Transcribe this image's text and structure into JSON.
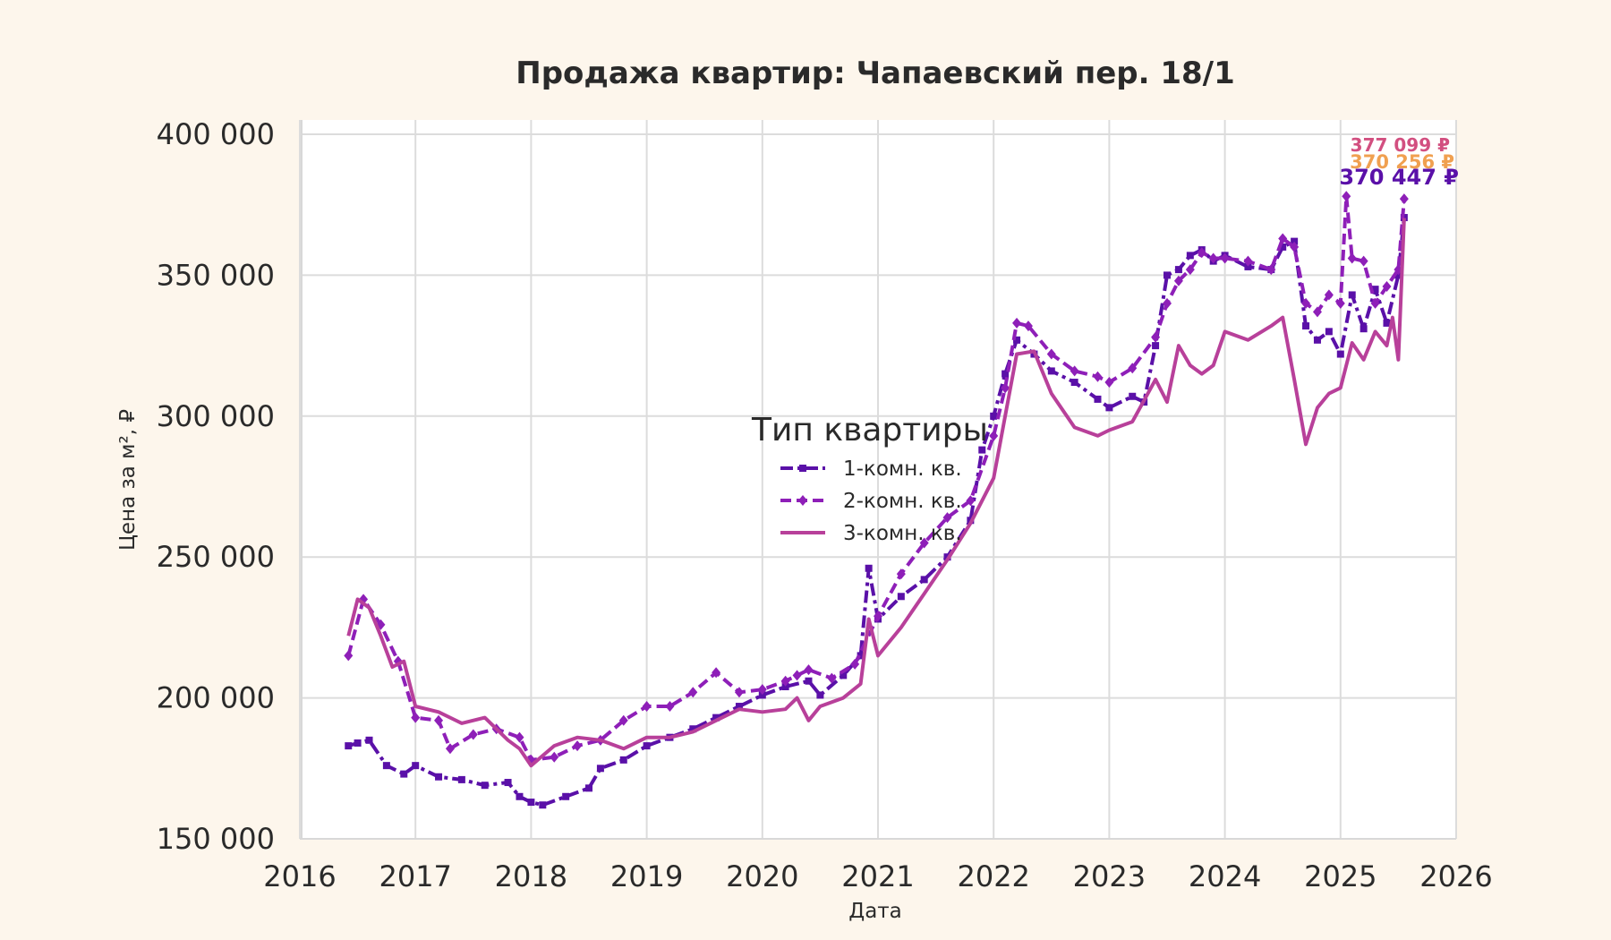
{
  "chart_data": {
    "type": "line",
    "title": "Продажа квартир: Чапаевский пер. 18/1",
    "xlabel": "Дата",
    "ylabel": "Цена за м², ₽",
    "xlim": [
      2016,
      2026
    ],
    "ylim": [
      150000,
      400000
    ],
    "x_ticks": [
      "2016",
      "2017",
      "2018",
      "2019",
      "2020",
      "2021",
      "2022",
      "2023",
      "2024",
      "2025",
      "2026"
    ],
    "y_ticks": [
      "150 000",
      "200 000",
      "250 000",
      "300 000",
      "350 000",
      "400 000"
    ],
    "grid": true,
    "legend": {
      "title": "Тип квартиры",
      "placement": "center"
    },
    "series": [
      {
        "name": "1-комн. кв.",
        "color": "#5a10a8",
        "style": "dashdot",
        "marker": "square",
        "x": [
          2016.42,
          2016.5,
          2016.6,
          2016.75,
          2016.9,
          2017.0,
          2017.2,
          2017.4,
          2017.6,
          2017.8,
          2017.9,
          2018.0,
          2018.1,
          2018.3,
          2018.5,
          2018.6,
          2018.8,
          2019.0,
          2019.2,
          2019.4,
          2019.6,
          2019.8,
          2020.0,
          2020.2,
          2020.4,
          2020.5,
          2020.7,
          2020.85,
          2020.92,
          2021.0,
          2021.2,
          2021.4,
          2021.6,
          2021.8,
          2021.9,
          2022.0,
          2022.1,
          2022.2,
          2022.35,
          2022.5,
          2022.7,
          2022.9,
          2023.0,
          2023.2,
          2023.3,
          2023.4,
          2023.5,
          2023.6,
          2023.7,
          2023.8,
          2023.9,
          2024.0,
          2024.2,
          2024.4,
          2024.5,
          2024.6,
          2024.7,
          2024.8,
          2024.9,
          2025.0,
          2025.1,
          2025.2,
          2025.3,
          2025.4,
          2025.5,
          2025.55
        ],
        "y": [
          183000,
          184000,
          185000,
          176000,
          173000,
          176000,
          172000,
          171000,
          169000,
          170000,
          165000,
          163000,
          162000,
          165000,
          168000,
          175000,
          178000,
          183000,
          186000,
          189000,
          193000,
          197000,
          201000,
          204000,
          206000,
          201000,
          208000,
          215000,
          246000,
          228000,
          236000,
          242000,
          250000,
          263000,
          288000,
          300000,
          315000,
          327000,
          322000,
          316000,
          312000,
          306000,
          303000,
          307000,
          305000,
          325000,
          350000,
          352000,
          357000,
          359000,
          355000,
          357000,
          353000,
          352000,
          360000,
          362000,
          332000,
          327000,
          330000,
          322000,
          343000,
          331000,
          345000,
          333000,
          350000,
          370447
        ]
      },
      {
        "name": "2-комн. кв.",
        "color": "#8e1fb8",
        "style": "dashed",
        "marker": "diamond",
        "x": [
          2016.42,
          2016.55,
          2016.7,
          2016.85,
          2017.0,
          2017.2,
          2017.3,
          2017.5,
          2017.7,
          2017.9,
          2018.0,
          2018.2,
          2018.4,
          2018.6,
          2018.8,
          2019.0,
          2019.2,
          2019.4,
          2019.6,
          2019.8,
          2020.0,
          2020.2,
          2020.3,
          2020.4,
          2020.6,
          2020.8,
          2021.0,
          2021.2,
          2021.4,
          2021.6,
          2021.8,
          2022.0,
          2022.1,
          2022.2,
          2022.3,
          2022.5,
          2022.7,
          2022.9,
          2023.0,
          2023.2,
          2023.4,
          2023.5,
          2023.6,
          2023.7,
          2023.8,
          2023.9,
          2024.0,
          2024.2,
          2024.4,
          2024.5,
          2024.6,
          2024.7,
          2024.8,
          2024.9,
          2025.0,
          2025.05,
          2025.1,
          2025.2,
          2025.3,
          2025.4,
          2025.5,
          2025.55
        ],
        "y": [
          215000,
          235000,
          226000,
          213000,
          193000,
          192000,
          182000,
          187000,
          189000,
          186000,
          178000,
          179000,
          183000,
          185000,
          192000,
          197000,
          197000,
          202000,
          209000,
          202000,
          203000,
          206000,
          208000,
          210000,
          207000,
          212000,
          229000,
          244000,
          255000,
          264000,
          270000,
          293000,
          310000,
          333000,
          332000,
          322000,
          316000,
          314000,
          312000,
          317000,
          328000,
          340000,
          348000,
          352000,
          358000,
          356000,
          356000,
          355000,
          352000,
          363000,
          360000,
          340000,
          337000,
          343000,
          340000,
          378000,
          356000,
          355000,
          340000,
          346000,
          352000,
          377099
        ]
      },
      {
        "name": "3-комн. кв.",
        "color": "#b8409a",
        "style": "solid",
        "marker": "none",
        "x": [
          2016.42,
          2016.5,
          2016.6,
          2016.7,
          2016.8,
          2016.9,
          2017.0,
          2017.2,
          2017.4,
          2017.6,
          2017.8,
          2017.9,
          2018.0,
          2018.2,
          2018.4,
          2018.6,
          2018.8,
          2019.0,
          2019.2,
          2019.4,
          2019.6,
          2019.8,
          2020.0,
          2020.2,
          2020.3,
          2020.4,
          2020.5,
          2020.7,
          2020.85,
          2020.92,
          2021.0,
          2021.2,
          2021.4,
          2021.6,
          2021.8,
          2022.0,
          2022.1,
          2022.2,
          2022.35,
          2022.5,
          2022.7,
          2022.9,
          2023.0,
          2023.2,
          2023.4,
          2023.5,
          2023.6,
          2023.7,
          2023.8,
          2023.9,
          2024.0,
          2024.2,
          2024.4,
          2024.5,
          2024.6,
          2024.7,
          2024.8,
          2024.9,
          2025.0,
          2025.1,
          2025.2,
          2025.3,
          2025.4,
          2025.45,
          2025.5,
          2025.55
        ],
        "y": [
          222000,
          235000,
          232000,
          222000,
          211000,
          213000,
          197000,
          195000,
          191000,
          193000,
          185000,
          182000,
          176000,
          183000,
          186000,
          185000,
          182000,
          186000,
          186000,
          188000,
          192000,
          196000,
          195000,
          196000,
          200000,
          192000,
          197000,
          200000,
          205000,
          228000,
          215000,
          225000,
          237000,
          249000,
          262000,
          278000,
          300000,
          322000,
          323000,
          308000,
          296000,
          293000,
          295000,
          298000,
          313000,
          305000,
          325000,
          318000,
          315000,
          318000,
          330000,
          327000,
          332000,
          335000,
          313000,
          290000,
          303000,
          308000,
          310000,
          326000,
          320000,
          330000,
          325000,
          335000,
          320000,
          370256
        ]
      }
    ],
    "end_labels": [
      {
        "text": "377 099 ₽",
        "color": "#d24f80"
      },
      {
        "text": "370 256 ₽",
        "color": "#f0a050"
      },
      {
        "text": "370 447 ₽",
        "color": "#5a10a8"
      }
    ]
  }
}
